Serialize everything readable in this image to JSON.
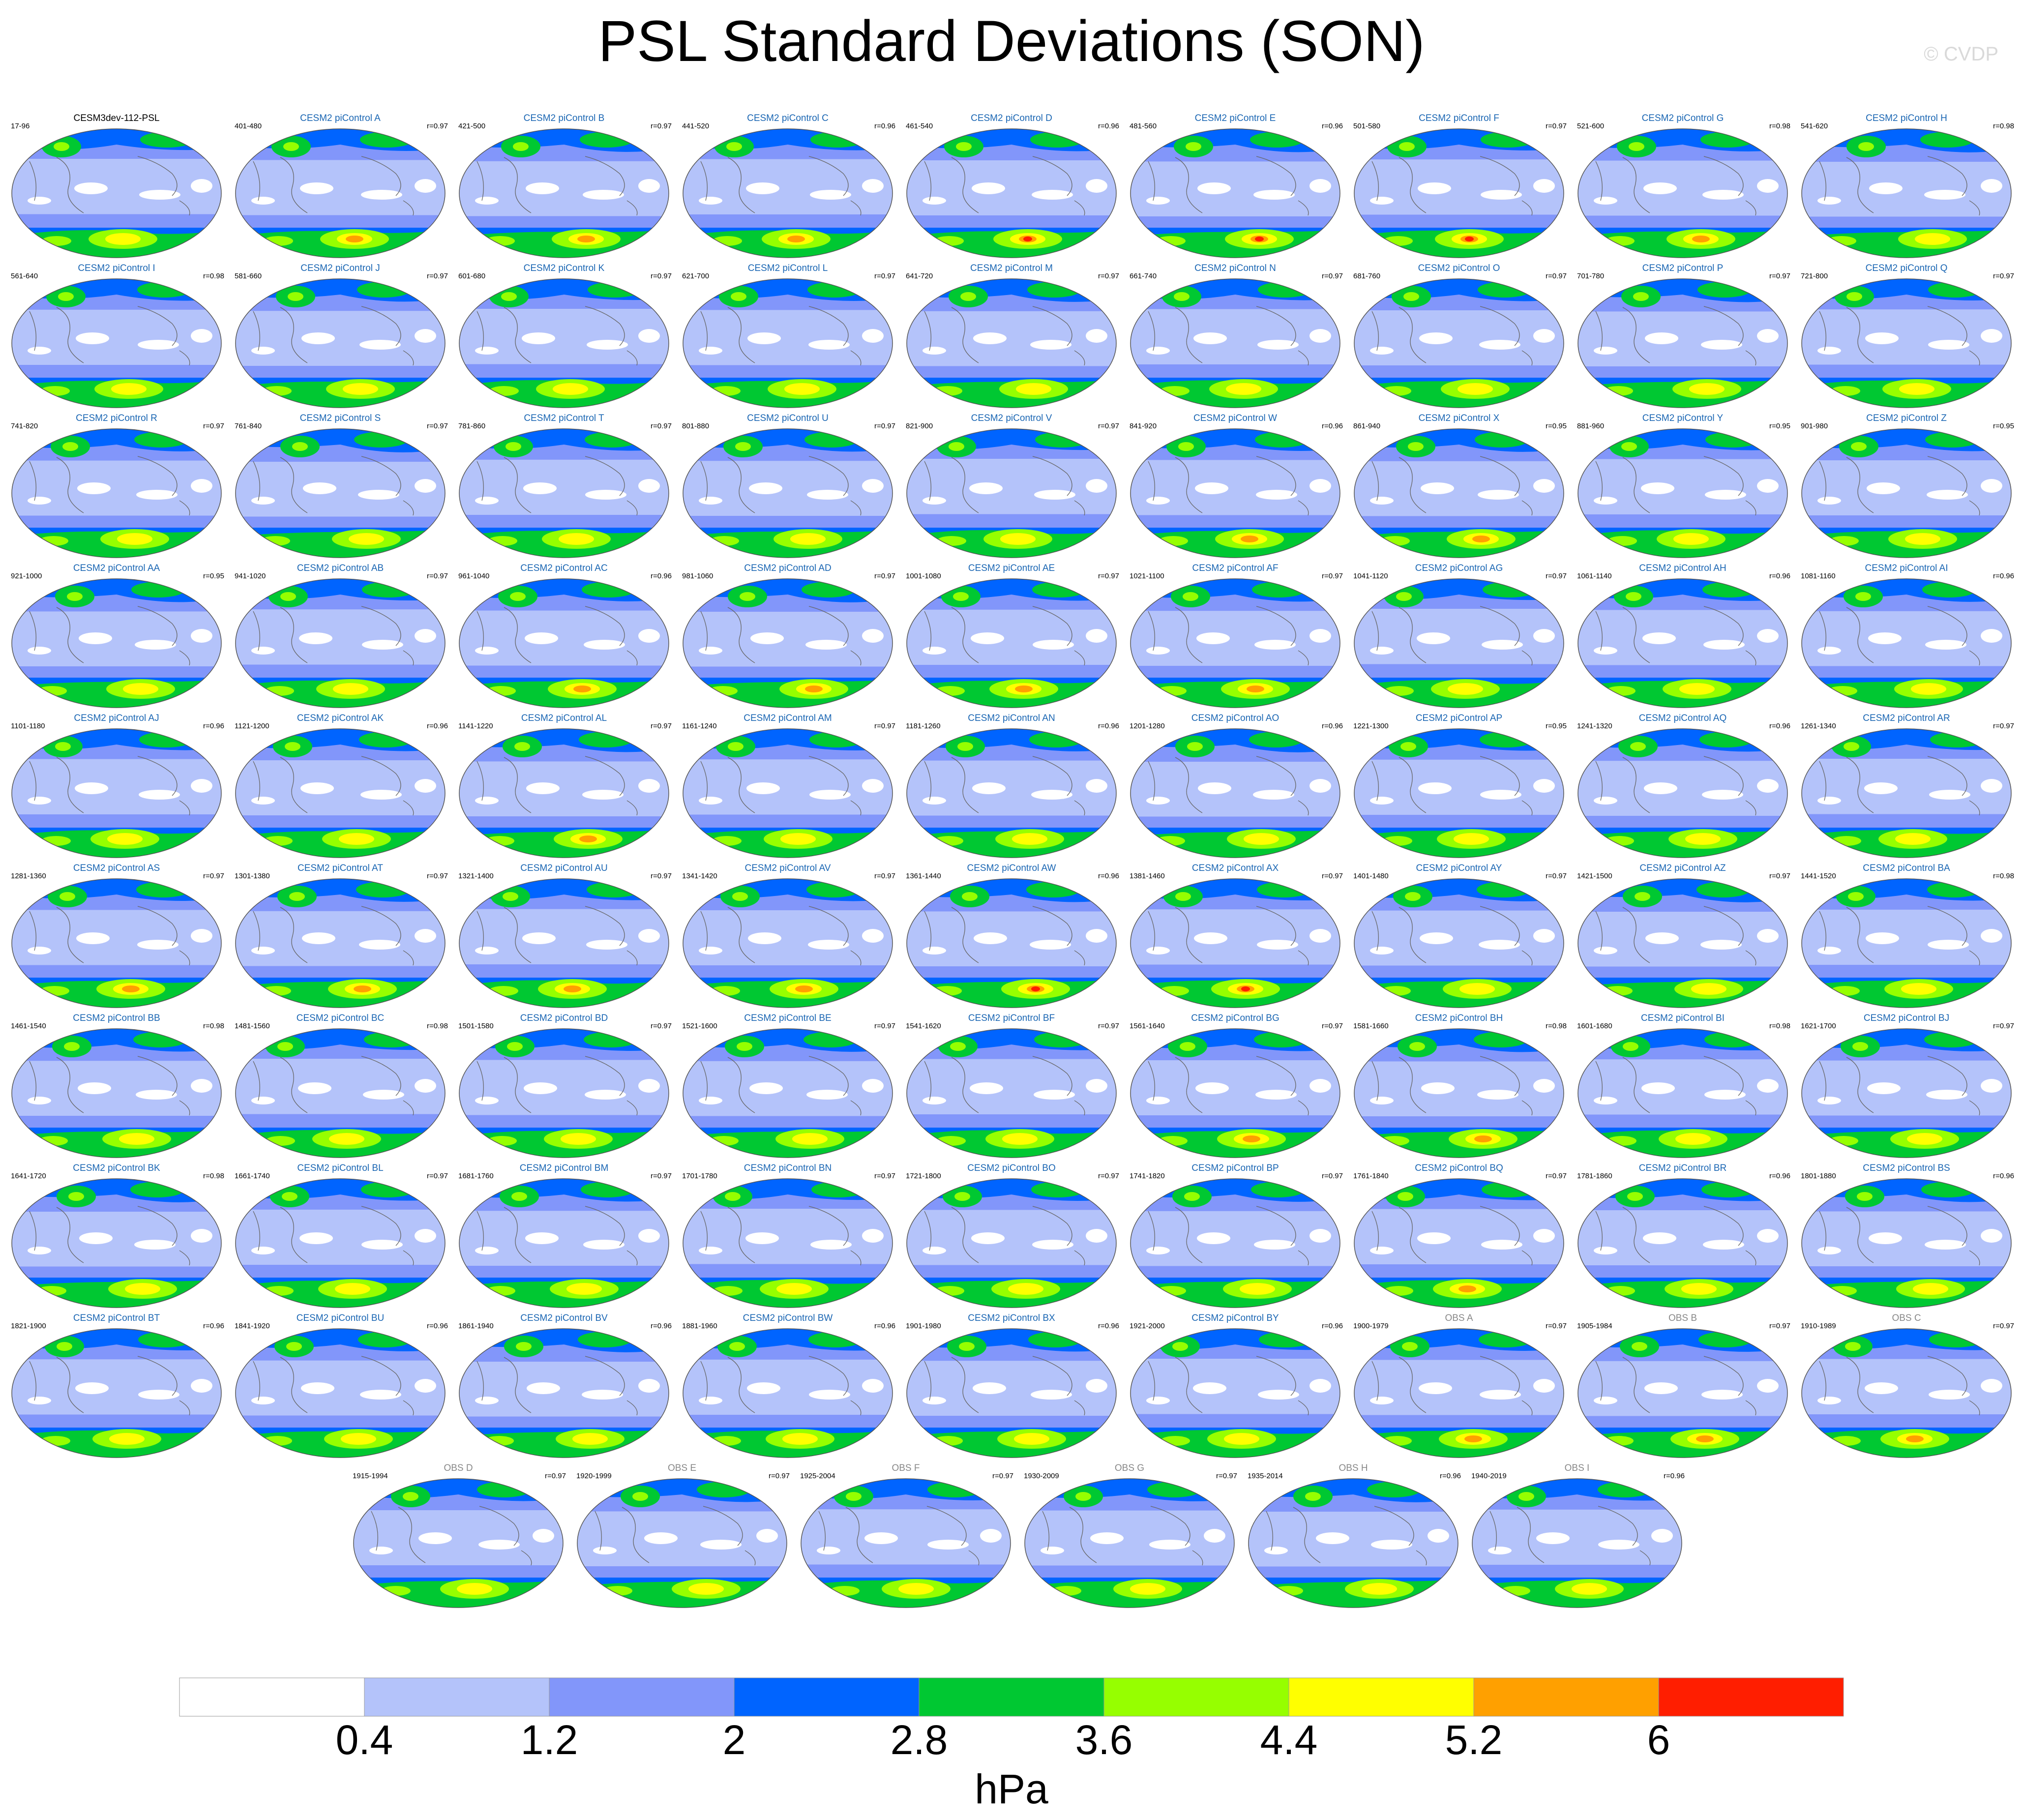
{
  "title": "PSL Standard Deviations (SON)",
  "credit": "© CVDP",
  "panels": [
    {
      "name": "CESM3dev-112-PSL",
      "years": "17-96",
      "r": "",
      "kind": "ref",
      "intensity": 1
    },
    {
      "name": "CESM2 piControl A",
      "years": "401-480",
      "r": "r=0.97",
      "kind": "model",
      "intensity": 2
    },
    {
      "name": "CESM2 piControl B",
      "years": "421-500",
      "r": "r=0.97",
      "kind": "model",
      "intensity": 2
    },
    {
      "name": "CESM2 piControl C",
      "years": "441-520",
      "r": "r=0.96",
      "kind": "model",
      "intensity": 2
    },
    {
      "name": "CESM2 piControl D",
      "years": "461-540",
      "r": "r=0.96",
      "kind": "model",
      "intensity": 3
    },
    {
      "name": "CESM2 piControl E",
      "years": "481-560",
      "r": "r=0.96",
      "kind": "model",
      "intensity": 3
    },
    {
      "name": "CESM2 piControl F",
      "years": "501-580",
      "r": "r=0.97",
      "kind": "model",
      "intensity": 3
    },
    {
      "name": "CESM2 piControl G",
      "years": "521-600",
      "r": "r=0.98",
      "kind": "model",
      "intensity": 2
    },
    {
      "name": "CESM2 piControl H",
      "years": "541-620",
      "r": "r=0.98",
      "kind": "model",
      "intensity": 1
    },
    {
      "name": "CESM2 piControl I",
      "years": "561-640",
      "r": "r=0.98",
      "kind": "model",
      "intensity": 1
    },
    {
      "name": "CESM2 piControl J",
      "years": "581-660",
      "r": "r=0.97",
      "kind": "model",
      "intensity": 1
    },
    {
      "name": "CESM2 piControl K",
      "years": "601-680",
      "r": "r=0.97",
      "kind": "model",
      "intensity": 1
    },
    {
      "name": "CESM2 piControl L",
      "years": "621-700",
      "r": "r=0.97",
      "kind": "model",
      "intensity": 1
    },
    {
      "name": "CESM2 piControl M",
      "years": "641-720",
      "r": "r=0.97",
      "kind": "model",
      "intensity": 1
    },
    {
      "name": "CESM2 piControl N",
      "years": "661-740",
      "r": "r=0.97",
      "kind": "model",
      "intensity": 1
    },
    {
      "name": "CESM2 piControl O",
      "years": "681-760",
      "r": "r=0.97",
      "kind": "model",
      "intensity": 1
    },
    {
      "name": "CESM2 piControl P",
      "years": "701-780",
      "r": "r=0.97",
      "kind": "model",
      "intensity": 1
    },
    {
      "name": "CESM2 piControl Q",
      "years": "721-800",
      "r": "r=0.97",
      "kind": "model",
      "intensity": 1
    },
    {
      "name": "CESM2 piControl R",
      "years": "741-820",
      "r": "r=0.97",
      "kind": "model",
      "intensity": 1
    },
    {
      "name": "CESM2 piControl S",
      "years": "761-840",
      "r": "r=0.97",
      "kind": "model",
      "intensity": 1
    },
    {
      "name": "CESM2 piControl T",
      "years": "781-860",
      "r": "r=0.97",
      "kind": "model",
      "intensity": 1
    },
    {
      "name": "CESM2 piControl U",
      "years": "801-880",
      "r": "r=0.97",
      "kind": "model",
      "intensity": 1
    },
    {
      "name": "CESM2 piControl V",
      "years": "821-900",
      "r": "r=0.97",
      "kind": "model",
      "intensity": 1
    },
    {
      "name": "CESM2 piControl W",
      "years": "841-920",
      "r": "r=0.96",
      "kind": "model",
      "intensity": 2
    },
    {
      "name": "CESM2 piControl X",
      "years": "861-940",
      "r": "r=0.95",
      "kind": "model",
      "intensity": 2
    },
    {
      "name": "CESM2 piControl Y",
      "years": "881-960",
      "r": "r=0.95",
      "kind": "model",
      "intensity": 1
    },
    {
      "name": "CESM2 piControl Z",
      "years": "901-980",
      "r": "r=0.95",
      "kind": "model",
      "intensity": 1
    },
    {
      "name": "CESM2 piControl AA",
      "years": "921-1000",
      "r": "r=0.95",
      "kind": "model",
      "intensity": 1
    },
    {
      "name": "CESM2 piControl AB",
      "years": "941-1020",
      "r": "r=0.97",
      "kind": "model",
      "intensity": 1
    },
    {
      "name": "CESM2 piControl AC",
      "years": "961-1040",
      "r": "r=0.96",
      "kind": "model",
      "intensity": 2
    },
    {
      "name": "CESM2 piControl AD",
      "years": "981-1060",
      "r": "r=0.97",
      "kind": "model",
      "intensity": 2
    },
    {
      "name": "CESM2 piControl AE",
      "years": "1001-1080",
      "r": "r=0.97",
      "kind": "model",
      "intensity": 2
    },
    {
      "name": "CESM2 piControl AF",
      "years": "1021-1100",
      "r": "r=0.97",
      "kind": "model",
      "intensity": 2
    },
    {
      "name": "CESM2 piControl AG",
      "years": "1041-1120",
      "r": "r=0.97",
      "kind": "model",
      "intensity": 1
    },
    {
      "name": "CESM2 piControl AH",
      "years": "1061-1140",
      "r": "r=0.96",
      "kind": "model",
      "intensity": 1
    },
    {
      "name": "CESM2 piControl AI",
      "years": "1081-1160",
      "r": "r=0.96",
      "kind": "model",
      "intensity": 1
    },
    {
      "name": "CESM2 piControl AJ",
      "years": "1101-1180",
      "r": "r=0.96",
      "kind": "model",
      "intensity": 1
    },
    {
      "name": "CESM2 piControl AK",
      "years": "1121-1200",
      "r": "r=0.96",
      "kind": "model",
      "intensity": 1
    },
    {
      "name": "CESM2 piControl AL",
      "years": "1141-1220",
      "r": "r=0.97",
      "kind": "model",
      "intensity": 2
    },
    {
      "name": "CESM2 piControl AM",
      "years": "1161-1240",
      "r": "r=0.97",
      "kind": "model",
      "intensity": 1
    },
    {
      "name": "CESM2 piControl AN",
      "years": "1181-1260",
      "r": "r=0.96",
      "kind": "model",
      "intensity": 1
    },
    {
      "name": "CESM2 piControl AO",
      "years": "1201-1280",
      "r": "r=0.96",
      "kind": "model",
      "intensity": 1
    },
    {
      "name": "CESM2 piControl AP",
      "years": "1221-1300",
      "r": "r=0.95",
      "kind": "model",
      "intensity": 1
    },
    {
      "name": "CESM2 piControl AQ",
      "years": "1241-1320",
      "r": "r=0.96",
      "kind": "model",
      "intensity": 1
    },
    {
      "name": "CESM2 piControl AR",
      "years": "1261-1340",
      "r": "r=0.97",
      "kind": "model",
      "intensity": 1
    },
    {
      "name": "CESM2 piControl AS",
      "years": "1281-1360",
      "r": "r=0.97",
      "kind": "model",
      "intensity": 2
    },
    {
      "name": "CESM2 piControl AT",
      "years": "1301-1380",
      "r": "r=0.97",
      "kind": "model",
      "intensity": 2
    },
    {
      "name": "CESM2 piControl AU",
      "years": "1321-1400",
      "r": "r=0.97",
      "kind": "model",
      "intensity": 2
    },
    {
      "name": "CESM2 piControl AV",
      "years": "1341-1420",
      "r": "r=0.97",
      "kind": "model",
      "intensity": 2
    },
    {
      "name": "CESM2 piControl AW",
      "years": "1361-1440",
      "r": "r=0.96",
      "kind": "model",
      "intensity": 3
    },
    {
      "name": "CESM2 piControl AX",
      "years": "1381-1460",
      "r": "r=0.97",
      "kind": "model",
      "intensity": 3
    },
    {
      "name": "CESM2 piControl AY",
      "years": "1401-1480",
      "r": "r=0.97",
      "kind": "model",
      "intensity": 1
    },
    {
      "name": "CESM2 piControl AZ",
      "years": "1421-1500",
      "r": "r=0.97",
      "kind": "model",
      "intensity": 1
    },
    {
      "name": "CESM2 piControl BA",
      "years": "1441-1520",
      "r": "r=0.98",
      "kind": "model",
      "intensity": 1
    },
    {
      "name": "CESM2 piControl BB",
      "years": "1461-1540",
      "r": "r=0.98",
      "kind": "model",
      "intensity": 1
    },
    {
      "name": "CESM2 piControl BC",
      "years": "1481-1560",
      "r": "r=0.98",
      "kind": "model",
      "intensity": 1
    },
    {
      "name": "CESM2 piControl BD",
      "years": "1501-1580",
      "r": "r=0.97",
      "kind": "model",
      "intensity": 1
    },
    {
      "name": "CESM2 piControl BE",
      "years": "1521-1600",
      "r": "r=0.97",
      "kind": "model",
      "intensity": 1
    },
    {
      "name": "CESM2 piControl BF",
      "years": "1541-1620",
      "r": "r=0.97",
      "kind": "model",
      "intensity": 1
    },
    {
      "name": "CESM2 piControl BG",
      "years": "1561-1640",
      "r": "r=0.97",
      "kind": "model",
      "intensity": 2
    },
    {
      "name": "CESM2 piControl BH",
      "years": "1581-1660",
      "r": "r=0.98",
      "kind": "model",
      "intensity": 2
    },
    {
      "name": "CESM2 piControl BI",
      "years": "1601-1680",
      "r": "r=0.98",
      "kind": "model",
      "intensity": 1
    },
    {
      "name": "CESM2 piControl BJ",
      "years": "1621-1700",
      "r": "r=0.97",
      "kind": "model",
      "intensity": 1
    },
    {
      "name": "CESM2 piControl BK",
      "years": "1641-1720",
      "r": "r=0.98",
      "kind": "model",
      "intensity": 1
    },
    {
      "name": "CESM2 piControl BL",
      "years": "1661-1740",
      "r": "r=0.97",
      "kind": "model",
      "intensity": 1
    },
    {
      "name": "CESM2 piControl BM",
      "years": "1681-1760",
      "r": "r=0.97",
      "kind": "model",
      "intensity": 1
    },
    {
      "name": "CESM2 piControl BN",
      "years": "1701-1780",
      "r": "r=0.97",
      "kind": "model",
      "intensity": 1
    },
    {
      "name": "CESM2 piControl BO",
      "years": "1721-1800",
      "r": "r=0.97",
      "kind": "model",
      "intensity": 1
    },
    {
      "name": "CESM2 piControl BP",
      "years": "1741-1820",
      "r": "r=0.97",
      "kind": "model",
      "intensity": 1
    },
    {
      "name": "CESM2 piControl BQ",
      "years": "1761-1840",
      "r": "r=0.97",
      "kind": "model",
      "intensity": 2
    },
    {
      "name": "CESM2 piControl BR",
      "years": "1781-1860",
      "r": "r=0.96",
      "kind": "model",
      "intensity": 1
    },
    {
      "name": "CESM2 piControl BS",
      "years": "1801-1880",
      "r": "r=0.96",
      "kind": "model",
      "intensity": 1
    },
    {
      "name": "CESM2 piControl BT",
      "years": "1821-1900",
      "r": "r=0.96",
      "kind": "model",
      "intensity": 1
    },
    {
      "name": "CESM2 piControl BU",
      "years": "1841-1920",
      "r": "r=0.96",
      "kind": "model",
      "intensity": 1
    },
    {
      "name": "CESM2 piControl BV",
      "years": "1861-1940",
      "r": "r=0.96",
      "kind": "model",
      "intensity": 1
    },
    {
      "name": "CESM2 piControl BW",
      "years": "1881-1960",
      "r": "r=0.96",
      "kind": "model",
      "intensity": 1
    },
    {
      "name": "CESM2 piControl BX",
      "years": "1901-1980",
      "r": "r=0.96",
      "kind": "model",
      "intensity": 1
    },
    {
      "name": "CESM2 piControl BY",
      "years": "1921-2000",
      "r": "r=0.96",
      "kind": "model",
      "intensity": 1
    },
    {
      "name": "OBS A",
      "years": "1900-1979",
      "r": "r=0.97",
      "kind": "obs",
      "intensity": 2
    },
    {
      "name": "OBS B",
      "years": "1905-1984",
      "r": "r=0.97",
      "kind": "obs",
      "intensity": 2
    },
    {
      "name": "OBS C",
      "years": "1910-1989",
      "r": "r=0.97",
      "kind": "obs",
      "intensity": 2
    },
    {
      "name": "OBS D",
      "years": "1915-1994",
      "r": "r=0.97",
      "kind": "obs",
      "intensity": 1
    },
    {
      "name": "OBS E",
      "years": "1920-1999",
      "r": "r=0.97",
      "kind": "obs",
      "intensity": 1
    },
    {
      "name": "OBS F",
      "years": "1925-2004",
      "r": "r=0.97",
      "kind": "obs",
      "intensity": 1
    },
    {
      "name": "OBS G",
      "years": "1930-2009",
      "r": "r=0.97",
      "kind": "obs",
      "intensity": 1
    },
    {
      "name": "OBS H",
      "years": "1935-2014",
      "r": "r=0.96",
      "kind": "obs",
      "intensity": 1
    },
    {
      "name": "OBS I",
      "years": "1940-2019",
      "r": "r=0.96",
      "kind": "obs",
      "intensity": 1
    }
  ],
  "colorbar": {
    "colors": [
      "#ffffff",
      "#b4c3fa",
      "#8296fa",
      "#0064ff",
      "#00c832",
      "#96ff00",
      "#ffff00",
      "#ffa000",
      "#ff1e00"
    ],
    "ticks": [
      "0.4",
      "1.2",
      "2",
      "2.8",
      "3.6",
      "4.4",
      "5.2",
      "6"
    ],
    "units": "hPa"
  },
  "chart_data": {
    "type": "heatmap",
    "title": "PSL Standard Deviations (SON)",
    "variable": "PSL",
    "season": "SON",
    "units": "hPa",
    "contour_levels": [
      0.4,
      1.2,
      2,
      2.8,
      3.6,
      4.4,
      5.2,
      6
    ],
    "level_colors": [
      "#ffffff",
      "#b4c3fa",
      "#8296fa",
      "#0064ff",
      "#00c832",
      "#96ff00",
      "#ffff00",
      "#ffa000",
      "#ff1e00"
    ],
    "reference": "CESM3dev-112-PSL",
    "panel_count": 87
  }
}
